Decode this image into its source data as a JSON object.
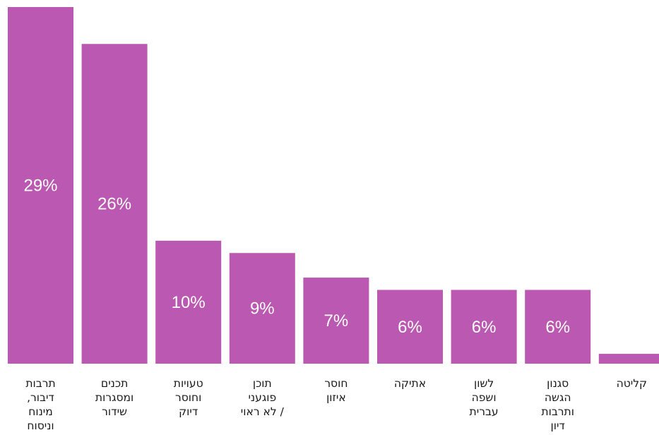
{
  "chart_data": {
    "type": "bar",
    "title": "",
    "xlabel": "",
    "ylabel": "",
    "ylim": [
      0,
      30
    ],
    "grid": false,
    "legend": "none",
    "bar_color": "#bb58b1",
    "categories": [
      "תרבות דיבור, מינוח וניסוח",
      "תכנים ומסגרות שידור",
      "טעויות וחוסר דיוק",
      "תוכן פוגעני / לא ראוי",
      "חוסר איזון",
      "אתיקה",
      "לשון ושפה עברית",
      "סגנון הגשה ותרבות דיון",
      "קליטה"
    ],
    "category_lines": [
      [
        "תרבות",
        "דיבור,",
        "מינוח",
        "וניסוח"
      ],
      [
        "תכנים",
        "ומסגרות",
        "שידור"
      ],
      [
        "טעויות",
        "וחוסר",
        "דיוק"
      ],
      [
        "תוכן",
        "פוגעני",
        "/ לא ראוי"
      ],
      [
        "חוסר",
        "איזון"
      ],
      [
        "אתיקה"
      ],
      [
        "לשון",
        "ושפה",
        "עברית"
      ],
      [
        "סגנון",
        "הגשה",
        "ותרבות",
        "דיון"
      ],
      [
        "קליטה"
      ]
    ],
    "values": [
      29,
      26,
      10,
      9,
      7,
      6,
      6,
      6,
      0.8
    ],
    "value_labels": [
      "29%",
      "26%",
      "10%",
      "9%",
      "7%",
      "6%",
      "6%",
      "6%",
      ""
    ]
  }
}
